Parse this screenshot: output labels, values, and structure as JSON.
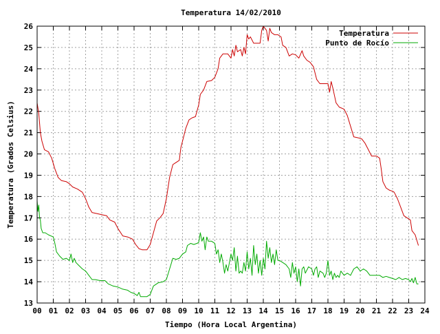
{
  "chart_data": {
    "type": "line",
    "title": "Temperatura 14/02/2010",
    "xlabel": "Tiempo (Hora Local Argentina)",
    "ylabel": "Temperatura (Grados Celsius)",
    "xlim": [
      0,
      24
    ],
    "ylim": [
      13,
      26
    ],
    "x_ticks": [
      "00",
      "01",
      "02",
      "03",
      "04",
      "05",
      "06",
      "07",
      "08",
      "09",
      "10",
      "11",
      "12",
      "13",
      "14",
      "15",
      "16",
      "17",
      "18",
      "19",
      "20",
      "21",
      "22",
      "23",
      "24"
    ],
    "y_ticks": [
      "13",
      "14",
      "15",
      "16",
      "17",
      "18",
      "19",
      "20",
      "21",
      "22",
      "23",
      "24",
      "25",
      "26"
    ],
    "grid": true,
    "legend_position": "top-right",
    "series": [
      {
        "name": "Temperatura",
        "color": "#cc0000",
        "points": [
          [
            0.0,
            22.4
          ],
          [
            0.1,
            21.9
          ],
          [
            0.2,
            21.0
          ],
          [
            0.3,
            20.6
          ],
          [
            0.45,
            20.2
          ],
          [
            0.7,
            20.1
          ],
          [
            0.9,
            19.8
          ],
          [
            1.1,
            19.3
          ],
          [
            1.3,
            18.9
          ],
          [
            1.5,
            18.75
          ],
          [
            1.8,
            18.7
          ],
          [
            2.0,
            18.6
          ],
          [
            2.2,
            18.45
          ],
          [
            2.5,
            18.35
          ],
          [
            2.8,
            18.2
          ],
          [
            3.0,
            17.9
          ],
          [
            3.2,
            17.5
          ],
          [
            3.4,
            17.25
          ],
          [
            3.7,
            17.2
          ],
          [
            4.0,
            17.15
          ],
          [
            4.3,
            17.1
          ],
          [
            4.5,
            16.9
          ],
          [
            4.8,
            16.8
          ],
          [
            5.0,
            16.5
          ],
          [
            5.3,
            16.15
          ],
          [
            5.6,
            16.1
          ],
          [
            5.9,
            16.0
          ],
          [
            6.1,
            15.75
          ],
          [
            6.3,
            15.55
          ],
          [
            6.5,
            15.5
          ],
          [
            6.8,
            15.5
          ],
          [
            7.0,
            15.75
          ],
          [
            7.2,
            16.3
          ],
          [
            7.4,
            16.85
          ],
          [
            7.6,
            17.0
          ],
          [
            7.8,
            17.2
          ],
          [
            8.0,
            17.9
          ],
          [
            8.2,
            18.9
          ],
          [
            8.4,
            19.5
          ],
          [
            8.6,
            19.6
          ],
          [
            8.8,
            19.7
          ],
          [
            8.9,
            20.3
          ],
          [
            9.0,
            20.6
          ],
          [
            9.2,
            21.2
          ],
          [
            9.4,
            21.6
          ],
          [
            9.6,
            21.7
          ],
          [
            9.8,
            21.75
          ],
          [
            10.0,
            22.3
          ],
          [
            10.1,
            22.8
          ],
          [
            10.3,
            23.0
          ],
          [
            10.5,
            23.4
          ],
          [
            10.8,
            23.45
          ],
          [
            11.0,
            23.6
          ],
          [
            11.2,
            24.0
          ],
          [
            11.3,
            24.5
          ],
          [
            11.5,
            24.7
          ],
          [
            11.8,
            24.7
          ],
          [
            12.0,
            24.5
          ],
          [
            12.1,
            24.9
          ],
          [
            12.2,
            24.6
          ],
          [
            12.3,
            25.1
          ],
          [
            12.4,
            24.8
          ],
          [
            12.6,
            24.9
          ],
          [
            12.7,
            24.6
          ],
          [
            12.8,
            25.0
          ],
          [
            12.9,
            24.7
          ],
          [
            13.0,
            25.6
          ],
          [
            13.1,
            25.4
          ],
          [
            13.2,
            25.5
          ],
          [
            13.4,
            25.2
          ],
          [
            13.6,
            25.2
          ],
          [
            13.8,
            25.2
          ],
          [
            13.9,
            25.8
          ],
          [
            14.0,
            26.0
          ],
          [
            14.1,
            25.9
          ],
          [
            14.2,
            25.8
          ],
          [
            14.3,
            25.3
          ],
          [
            14.4,
            25.9
          ],
          [
            14.5,
            25.7
          ],
          [
            14.7,
            25.6
          ],
          [
            14.9,
            25.6
          ],
          [
            15.1,
            25.5
          ],
          [
            15.2,
            25.1
          ],
          [
            15.4,
            25.0
          ],
          [
            15.6,
            24.6
          ],
          [
            15.8,
            24.7
          ],
          [
            16.0,
            24.65
          ],
          [
            16.2,
            24.5
          ],
          [
            16.4,
            24.85
          ],
          [
            16.5,
            24.6
          ],
          [
            16.7,
            24.4
          ],
          [
            16.9,
            24.3
          ],
          [
            17.1,
            24.1
          ],
          [
            17.3,
            23.5
          ],
          [
            17.5,
            23.3
          ],
          [
            17.8,
            23.3
          ],
          [
            18.0,
            23.3
          ],
          [
            18.1,
            22.9
          ],
          [
            18.2,
            23.4
          ],
          [
            18.3,
            23.1
          ],
          [
            18.5,
            22.4
          ],
          [
            18.7,
            22.2
          ],
          [
            19.0,
            22.1
          ],
          [
            19.2,
            21.8
          ],
          [
            19.4,
            21.3
          ],
          [
            19.6,
            20.8
          ],
          [
            19.9,
            20.75
          ],
          [
            20.1,
            20.7
          ],
          [
            20.3,
            20.5
          ],
          [
            20.5,
            20.2
          ],
          [
            20.7,
            19.9
          ],
          [
            21.0,
            19.9
          ],
          [
            21.2,
            19.8
          ],
          [
            21.3,
            19.3
          ],
          [
            21.4,
            18.7
          ],
          [
            21.6,
            18.4
          ],
          [
            21.8,
            18.3
          ],
          [
            22.0,
            18.25
          ],
          [
            22.1,
            18.2
          ],
          [
            22.3,
            17.9
          ],
          [
            22.5,
            17.5
          ],
          [
            22.7,
            17.1
          ],
          [
            22.9,
            17.0
          ],
          [
            23.1,
            16.9
          ],
          [
            23.2,
            16.4
          ],
          [
            23.4,
            16.2
          ],
          [
            23.6,
            15.7
          ]
        ]
      },
      {
        "name": "Punto de Rocío",
        "color": "#00aa00",
        "points": [
          [
            0.0,
            17.8
          ],
          [
            0.05,
            17.3
          ],
          [
            0.1,
            17.6
          ],
          [
            0.15,
            17.0
          ],
          [
            0.2,
            16.9
          ],
          [
            0.25,
            16.5
          ],
          [
            0.35,
            16.3
          ],
          [
            0.5,
            16.3
          ],
          [
            0.7,
            16.2
          ],
          [
            1.0,
            16.1
          ],
          [
            1.1,
            15.8
          ],
          [
            1.2,
            15.4
          ],
          [
            1.4,
            15.2
          ],
          [
            1.6,
            15.05
          ],
          [
            1.8,
            15.1
          ],
          [
            2.0,
            15.0
          ],
          [
            2.1,
            15.3
          ],
          [
            2.2,
            14.9
          ],
          [
            2.3,
            15.1
          ],
          [
            2.4,
            14.9
          ],
          [
            2.6,
            14.75
          ],
          [
            2.8,
            14.6
          ],
          [
            3.0,
            14.5
          ],
          [
            3.2,
            14.3
          ],
          [
            3.4,
            14.1
          ],
          [
            3.6,
            14.1
          ],
          [
            3.9,
            14.05
          ],
          [
            4.2,
            14.05
          ],
          [
            4.4,
            13.9
          ],
          [
            4.7,
            13.8
          ],
          [
            5.0,
            13.75
          ],
          [
            5.3,
            13.65
          ],
          [
            5.6,
            13.6
          ],
          [
            5.8,
            13.5
          ],
          [
            6.0,
            13.45
          ],
          [
            6.2,
            13.35
          ],
          [
            6.3,
            13.5
          ],
          [
            6.4,
            13.3
          ],
          [
            6.6,
            13.3
          ],
          [
            6.8,
            13.3
          ],
          [
            7.0,
            13.4
          ],
          [
            7.2,
            13.8
          ],
          [
            7.5,
            13.95
          ],
          [
            7.8,
            14.0
          ],
          [
            8.0,
            14.1
          ],
          [
            8.2,
            14.6
          ],
          [
            8.4,
            15.1
          ],
          [
            8.6,
            15.05
          ],
          [
            8.8,
            15.1
          ],
          [
            9.0,
            15.3
          ],
          [
            9.2,
            15.4
          ],
          [
            9.3,
            15.7
          ],
          [
            9.5,
            15.8
          ],
          [
            9.7,
            15.75
          ],
          [
            9.9,
            15.8
          ],
          [
            10.0,
            15.85
          ],
          [
            10.1,
            16.3
          ],
          [
            10.2,
            15.9
          ],
          [
            10.3,
            16.1
          ],
          [
            10.4,
            15.5
          ],
          [
            10.5,
            16.1
          ],
          [
            10.6,
            15.9
          ],
          [
            10.8,
            15.9
          ],
          [
            11.0,
            15.8
          ],
          [
            11.1,
            15.3
          ],
          [
            11.2,
            15.5
          ],
          [
            11.3,
            14.9
          ],
          [
            11.4,
            15.3
          ],
          [
            11.5,
            14.9
          ],
          [
            11.6,
            14.4
          ],
          [
            11.7,
            14.8
          ],
          [
            11.8,
            14.5
          ],
          [
            11.9,
            14.9
          ],
          [
            12.0,
            15.3
          ],
          [
            12.1,
            15.0
          ],
          [
            12.2,
            15.6
          ],
          [
            12.3,
            14.5
          ],
          [
            12.4,
            15.2
          ],
          [
            12.5,
            14.4
          ],
          [
            12.6,
            14.5
          ],
          [
            12.7,
            14.4
          ],
          [
            12.8,
            14.9
          ],
          [
            12.9,
            14.5
          ],
          [
            13.0,
            15.4
          ],
          [
            13.1,
            14.6
          ],
          [
            13.2,
            15.1
          ],
          [
            13.3,
            14.3
          ],
          [
            13.4,
            15.7
          ],
          [
            13.5,
            14.8
          ],
          [
            13.6,
            15.3
          ],
          [
            13.7,
            14.4
          ],
          [
            13.8,
            15.0
          ],
          [
            13.9,
            14.3
          ],
          [
            14.0,
            15.1
          ],
          [
            14.1,
            14.6
          ],
          [
            14.2,
            15.9
          ],
          [
            14.3,
            15.1
          ],
          [
            14.4,
            15.6
          ],
          [
            14.5,
            14.9
          ],
          [
            14.6,
            15.3
          ],
          [
            14.7,
            14.8
          ],
          [
            14.8,
            15.5
          ],
          [
            14.9,
            15.0
          ],
          [
            15.0,
            15.0
          ],
          [
            15.2,
            14.9
          ],
          [
            15.4,
            14.8
          ],
          [
            15.6,
            14.6
          ],
          [
            15.7,
            14.2
          ],
          [
            15.8,
            14.9
          ],
          [
            15.9,
            14.4
          ],
          [
            16.0,
            14.7
          ],
          [
            16.1,
            14.0
          ],
          [
            16.2,
            14.6
          ],
          [
            16.3,
            13.8
          ],
          [
            16.4,
            14.6
          ],
          [
            16.5,
            14.7
          ],
          [
            16.6,
            14.4
          ],
          [
            16.8,
            14.7
          ],
          [
            17.0,
            14.6
          ],
          [
            17.1,
            14.3
          ],
          [
            17.2,
            14.6
          ],
          [
            17.3,
            14.7
          ],
          [
            17.4,
            14.2
          ],
          [
            17.5,
            14.5
          ],
          [
            17.7,
            14.4
          ],
          [
            17.8,
            14.2
          ],
          [
            17.9,
            14.4
          ],
          [
            18.0,
            15.0
          ],
          [
            18.1,
            14.3
          ],
          [
            18.2,
            14.5
          ],
          [
            18.3,
            14.1
          ],
          [
            18.4,
            14.4
          ],
          [
            18.5,
            14.2
          ],
          [
            18.6,
            14.3
          ],
          [
            18.7,
            14.2
          ],
          [
            18.8,
            14.5
          ],
          [
            19.0,
            14.3
          ],
          [
            19.2,
            14.4
          ],
          [
            19.4,
            14.3
          ],
          [
            19.6,
            14.6
          ],
          [
            19.8,
            14.7
          ],
          [
            20.0,
            14.5
          ],
          [
            20.2,
            14.6
          ],
          [
            20.4,
            14.5
          ],
          [
            20.6,
            14.3
          ],
          [
            20.8,
            14.3
          ],
          [
            21.0,
            14.3
          ],
          [
            21.2,
            14.3
          ],
          [
            21.4,
            14.2
          ],
          [
            21.6,
            14.25
          ],
          [
            21.8,
            14.2
          ],
          [
            22.0,
            14.15
          ],
          [
            22.2,
            14.1
          ],
          [
            22.4,
            14.2
          ],
          [
            22.6,
            14.1
          ],
          [
            22.8,
            14.15
          ],
          [
            23.0,
            14.1
          ],
          [
            23.1,
            14.0
          ],
          [
            23.2,
            14.15
          ],
          [
            23.3,
            13.95
          ],
          [
            23.4,
            14.2
          ],
          [
            23.5,
            13.9
          ],
          [
            23.6,
            13.9
          ]
        ]
      }
    ]
  }
}
